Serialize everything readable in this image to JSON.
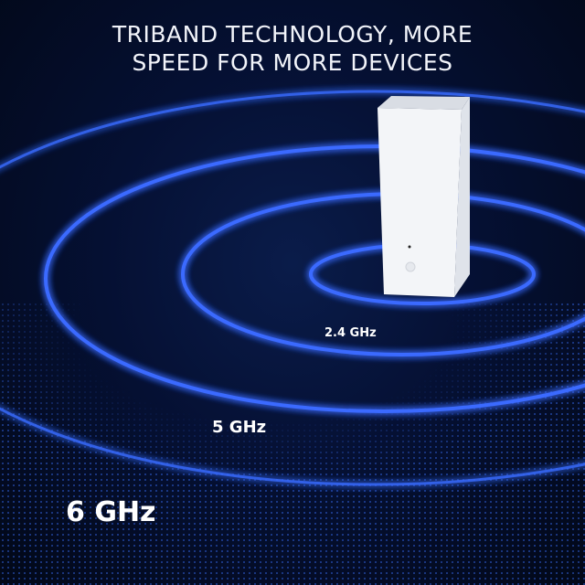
{
  "headline": {
    "line1": "TRIBAND TECHNOLOGY, MORE",
    "line2": "SPEED FOR MORE DEVICES"
  },
  "bands": {
    "band_24": "2.4 GHz",
    "band_5": "5 GHz",
    "band_6": "6 GHz"
  },
  "colors": {
    "background": "#020818",
    "ring_glow": "#2a5cff",
    "text": "#ffffff"
  }
}
